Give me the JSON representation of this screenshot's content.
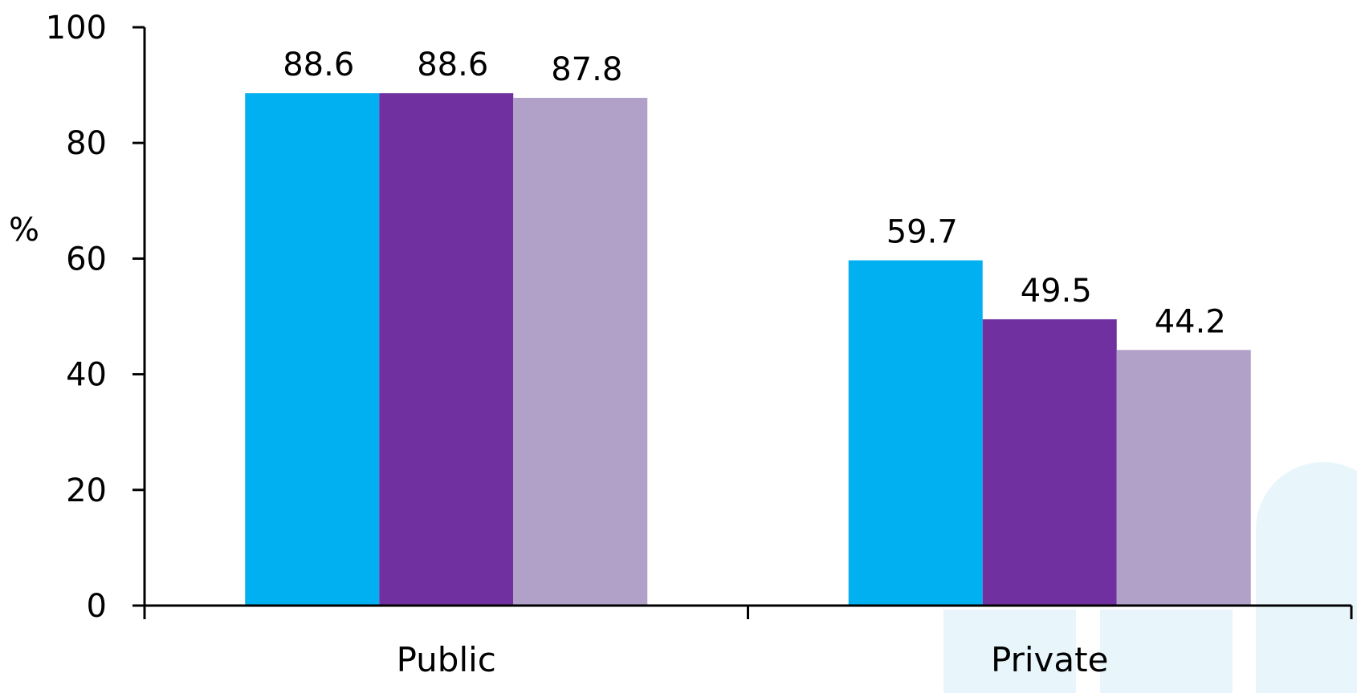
{
  "chart_data": {
    "type": "bar",
    "title": "",
    "xlabel": "",
    "ylabel": "%",
    "ylim": [
      0,
      100
    ],
    "yticks": [
      0,
      20,
      40,
      60,
      80,
      100
    ],
    "categories": [
      "Public",
      "Private"
    ],
    "series": [
      {
        "color": "#00b0f0",
        "values": [
          88.6,
          59.7
        ]
      },
      {
        "color": "#7030a0",
        "values": [
          88.6,
          49.5
        ]
      },
      {
        "color": "#b1a0c7",
        "values": [
          87.8,
          44.2
        ]
      }
    ],
    "grid": false,
    "legend": "none",
    "watermark_color": "#e8f6fc"
  }
}
